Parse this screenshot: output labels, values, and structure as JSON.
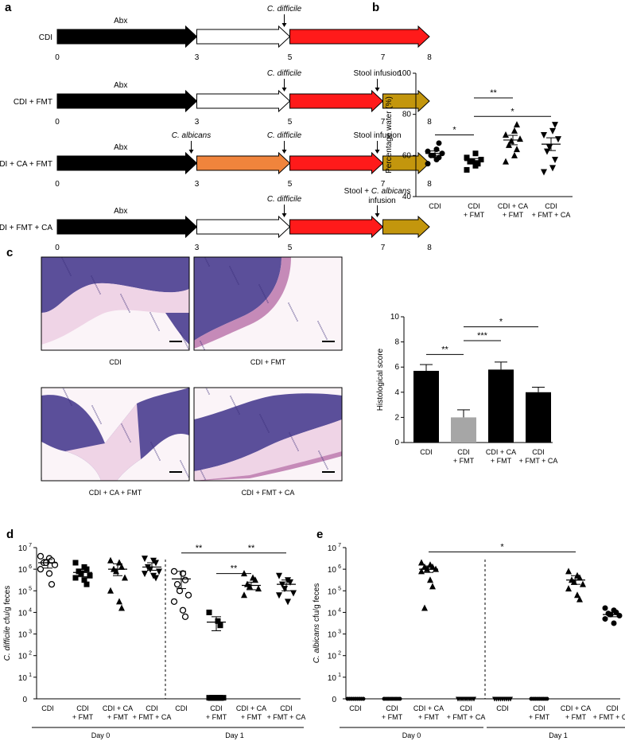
{
  "panel_letters": {
    "a": "a",
    "b": "b",
    "c": "c",
    "d": "d",
    "e": "e"
  },
  "timeline": {
    "rows": [
      {
        "label": "CDI",
        "top_labels": [
          {
            "text": "Abx",
            "italic": false,
            "pos": "abx"
          },
          {
            "text": "C. difficile",
            "italic": true,
            "pos": "d5"
          }
        ],
        "segments": [
          "black",
          "white",
          "red"
        ],
        "ticks": [
          "0",
          "3",
          "5",
          "7",
          "8"
        ]
      },
      {
        "label": "CDI + FMT",
        "top_labels": [
          {
            "text": "Abx",
            "italic": false,
            "pos": "abx"
          },
          {
            "text": "C. difficile",
            "italic": true,
            "pos": "d5"
          },
          {
            "text": "Stool infusion",
            "italic": false,
            "pos": "d7"
          }
        ],
        "segments": [
          "black",
          "white",
          "red",
          "gold"
        ],
        "ticks": [
          "0",
          "3",
          "5",
          "7",
          "8"
        ]
      },
      {
        "label": "CDI + CA + FMT",
        "top_labels": [
          {
            "text": "Abx",
            "italic": false,
            "pos": "abx"
          },
          {
            "text": "C. albicans",
            "italic": true,
            "pos": "d3"
          },
          {
            "text": "C. difficile",
            "italic": true,
            "pos": "d5"
          },
          {
            "text": "Stool infusion",
            "italic": false,
            "pos": "d7"
          }
        ],
        "segments": [
          "black",
          "orange",
          "red",
          "gold"
        ],
        "ticks": [
          "0",
          "3",
          "5",
          "7",
          "8"
        ]
      },
      {
        "label": "CDI + FMT + CA",
        "top_labels": [
          {
            "text": "Abx",
            "italic": false,
            "pos": "abx"
          },
          {
            "text": "C. difficile",
            "italic": true,
            "pos": "d5"
          }
        ],
        "stool_ca_label": {
          "line1_a": "Stool + ",
          "line1_b": "C. albicans",
          "line2": "infusion"
        },
        "segments": [
          "black",
          "white",
          "red",
          "gold"
        ],
        "ticks": [
          "0",
          "3",
          "5",
          "7",
          "8"
        ]
      }
    ],
    "colors": {
      "black": "#000000",
      "white": "#ffffff",
      "red": "#ff1a1a",
      "orange": "#f0843c",
      "gold": "#c3960d"
    }
  },
  "histology": {
    "captions": [
      "CDI",
      "CDI + FMT",
      "CDI + CA + FMT",
      "CDI + FMT + CA"
    ],
    "tissue_colors": {
      "epithelium": "#5b4f9a",
      "lamina": "#c58ab8",
      "submucosa": "#efd4e6",
      "lumen": "#fbf4f8"
    }
  },
  "chart_data": [
    {
      "panel": "b",
      "type": "scatter",
      "ylabel": "Percentage water (%)",
      "ylim": [
        40,
        100
      ],
      "yticks": [
        40,
        60,
        80,
        100
      ],
      "categories": [
        [
          "CDI"
        ],
        [
          "CDI",
          "+ FMT"
        ],
        [
          "CDI + CA",
          "+ FMT"
        ],
        [
          "CDI",
          "+ FMT + CA"
        ]
      ],
      "series": [
        {
          "marker": "circle",
          "values": [
            56,
            58,
            59,
            60,
            60,
            61,
            62,
            63,
            66
          ],
          "mean": 61,
          "sem": 1.2
        },
        {
          "marker": "square",
          "values": [
            53,
            55,
            56,
            57,
            57,
            58,
            59,
            61
          ],
          "mean": 57.5,
          "sem": 1.0
        },
        {
          "marker": "triangle",
          "values": [
            57,
            60,
            63,
            65,
            67,
            68,
            70,
            72,
            75
          ],
          "mean": 67.5,
          "sem": 2.3
        },
        {
          "marker": "triangle-down",
          "values": [
            52,
            54,
            58,
            62,
            64,
            68,
            70,
            72,
            75
          ],
          "mean": 65.5,
          "sem": 3.1
        }
      ],
      "significance": [
        {
          "from": 0,
          "to": 1,
          "label": "*",
          "y": 70
        },
        {
          "from": 1,
          "to": 2,
          "label": "**",
          "y": 88
        },
        {
          "from": 1,
          "to": 3,
          "label": "*",
          "y": 79
        }
      ]
    },
    {
      "panel": "c",
      "type": "bar",
      "ylabel": "Histological score",
      "ylim": [
        0,
        10
      ],
      "yticks": [
        0,
        2,
        4,
        6,
        8,
        10
      ],
      "categories": [
        [
          "CDI"
        ],
        [
          "CDI",
          "+ FMT"
        ],
        [
          "CDI + CA",
          "+ FMT"
        ],
        [
          "CDI",
          "+ FMT + CA"
        ]
      ],
      "values": [
        5.7,
        2.0,
        5.8,
        4.0
      ],
      "errors": [
        0.5,
        0.6,
        0.6,
        0.4
      ],
      "bar_colors": [
        "#000000",
        "#a6a6a6",
        "#000000",
        "#000000"
      ],
      "significance": [
        {
          "from": 0,
          "to": 1,
          "label": "**",
          "y": 7.0
        },
        {
          "from": 1,
          "to": 2,
          "label": "***",
          "y": 8.1
        },
        {
          "from": 1,
          "to": 3,
          "label": "*",
          "y": 9.2
        }
      ]
    },
    {
      "panel": "d",
      "type": "scatter",
      "log_y": true,
      "ylabel_italic": "C. difficile",
      "ylabel_rest": " cfu/g feces",
      "yticks": [
        "0",
        "10",
        "10",
        "10",
        "10",
        "10",
        "10",
        "10"
      ],
      "ytick_exponents": [
        "",
        "1",
        "2",
        "3",
        "4",
        "5",
        "6",
        "7"
      ],
      "categories": [
        [
          "CDI"
        ],
        [
          "CDI",
          "+ FMT"
        ],
        [
          "CDI + CA",
          "+ FMT"
        ],
        [
          "CDI",
          "+ FMT + CA"
        ],
        [
          "CDI"
        ],
        [
          "CDI",
          "+ FMT"
        ],
        [
          "CDI + CA",
          "+ FMT"
        ],
        [
          "CDI",
          "+ FMT + CA"
        ]
      ],
      "groups": [
        {
          "label": "Day 0",
          "from": 0,
          "to": 3
        },
        {
          "label": "Day 1",
          "from": 4,
          "to": 7
        }
      ],
      "series": [
        {
          "marker": "circle-open",
          "log_values": [
            6.6,
            6.5,
            6.4,
            6.3,
            6.3,
            6.2,
            6.0,
            5.8,
            5.3
          ],
          "log_mean": 6.3,
          "log_sem_hi": 6.45,
          "log_sem_lo": 6.05
        },
        {
          "marker": "square",
          "log_values": [
            6.3,
            6.1,
            6.0,
            5.9,
            5.8,
            5.7,
            5.6,
            5.5,
            5.3
          ],
          "log_mean": 5.85,
          "log_sem_hi": 6.0,
          "log_sem_lo": 5.65
        },
        {
          "marker": "triangle",
          "log_values": [
            6.4,
            6.3,
            6.1,
            6.0,
            5.9,
            5.6,
            5.0,
            4.5,
            4.2
          ],
          "log_mean": 6.0,
          "log_sem_hi": 6.25,
          "log_sem_lo": 5.7
        },
        {
          "marker": "triangle-down",
          "log_values": [
            6.5,
            6.4,
            6.3,
            6.1,
            6.0,
            5.9,
            5.8,
            5.7,
            5.6
          ],
          "log_mean": 6.1,
          "log_sem_hi": 6.3,
          "log_sem_lo": 5.95
        },
        {
          "marker": "circle-open",
          "log_values": [
            5.9,
            5.8,
            5.5,
            5.3,
            5.0,
            4.8,
            4.5,
            4.1,
            3.8
          ],
          "log_mean": 5.55,
          "log_sem_hi": 5.9,
          "log_sem_lo": 5.1
        },
        {
          "marker": "square",
          "log_values": [
            4.0,
            3.6,
            3.4,
            0.05,
            0.05,
            0.05,
            0.05,
            0.05,
            0.05
          ],
          "log_mean": 3.55,
          "log_sem_hi": 3.8,
          "log_sem_lo": 3.15,
          "zero_count": 6
        },
        {
          "marker": "triangle",
          "log_values": [
            5.8,
            5.6,
            5.5,
            5.3,
            5.2,
            5.1,
            4.8
          ],
          "log_mean": 5.25,
          "log_sem_hi": 5.4,
          "log_sem_lo": 5.05
        },
        {
          "marker": "triangle-down",
          "log_values": [
            5.7,
            5.5,
            5.4,
            5.3,
            5.1,
            4.9,
            4.8,
            4.5
          ],
          "log_mean": 5.3,
          "log_sem_hi": 5.5,
          "log_sem_lo": 5.0
        }
      ],
      "significance": [
        {
          "from": 4,
          "to": 5,
          "label": "**",
          "y": 6.75
        },
        {
          "from": 5,
          "to": 7,
          "label": "**",
          "y": 6.75
        },
        {
          "from": 5,
          "to": 6,
          "label": "**",
          "y": 5.8
        }
      ]
    },
    {
      "panel": "e",
      "type": "scatter",
      "log_y": true,
      "ylabel_italic": "C. albicans",
      "ylabel_rest": " cfu/g feces",
      "yticks": [
        "0",
        "10",
        "10",
        "10",
        "10",
        "10",
        "10",
        "10"
      ],
      "ytick_exponents": [
        "",
        "1",
        "2",
        "3",
        "4",
        "5",
        "6",
        "7"
      ],
      "categories": [
        [
          "CDI"
        ],
        [
          "CDI",
          "+ FMT"
        ],
        [
          "CDI + CA",
          "+ FMT"
        ],
        [
          "CDI",
          "+ FMT + CA"
        ],
        [
          "CDI"
        ],
        [
          "CDI",
          "+ FMT"
        ],
        [
          "CDI + CA",
          "+ FMT"
        ],
        [
          "CDI",
          "+ FMT + CA"
        ]
      ],
      "groups": [
        {
          "label": "Day 0",
          "from": 0,
          "to": 3
        },
        {
          "label": "Day 1",
          "from": 4,
          "to": 7
        }
      ],
      "series": [
        {
          "marker": "circle",
          "zero_only": true,
          "zero_count": 9
        },
        {
          "marker": "circle",
          "zero_only": true,
          "zero_count": 9
        },
        {
          "marker": "triangle",
          "log_values": [
            6.3,
            6.2,
            6.1,
            6.1,
            6.0,
            6.0,
            5.9,
            5.5,
            5.2,
            4.2
          ],
          "log_mean": 6.0,
          "log_sem_hi": 6.15,
          "log_sem_lo": 5.85
        },
        {
          "marker": "triangle-down",
          "zero_only": true,
          "zero_count": 9
        },
        {
          "marker": "triangle-down",
          "zero_only": true,
          "zero_count": 9
        },
        {
          "marker": "circle",
          "zero_only": true,
          "zero_count": 9
        },
        {
          "marker": "triangle",
          "log_values": [
            5.9,
            5.7,
            5.6,
            5.5,
            5.4,
            5.3,
            5.1,
            4.8,
            4.6
          ],
          "log_mean": 5.5,
          "log_sem_hi": 5.7,
          "log_sem_lo": 5.3
        },
        {
          "marker": "circle",
          "log_values": [
            4.2,
            4.1,
            4.0,
            3.95,
            3.9,
            3.85,
            3.7,
            3.5
          ],
          "log_mean": 3.9,
          "log_sem_hi": 4.0,
          "log_sem_lo": 3.8
        }
      ],
      "significance": [
        {
          "from": 2,
          "to": 6,
          "label": "*",
          "y": 6.8
        }
      ]
    }
  ]
}
